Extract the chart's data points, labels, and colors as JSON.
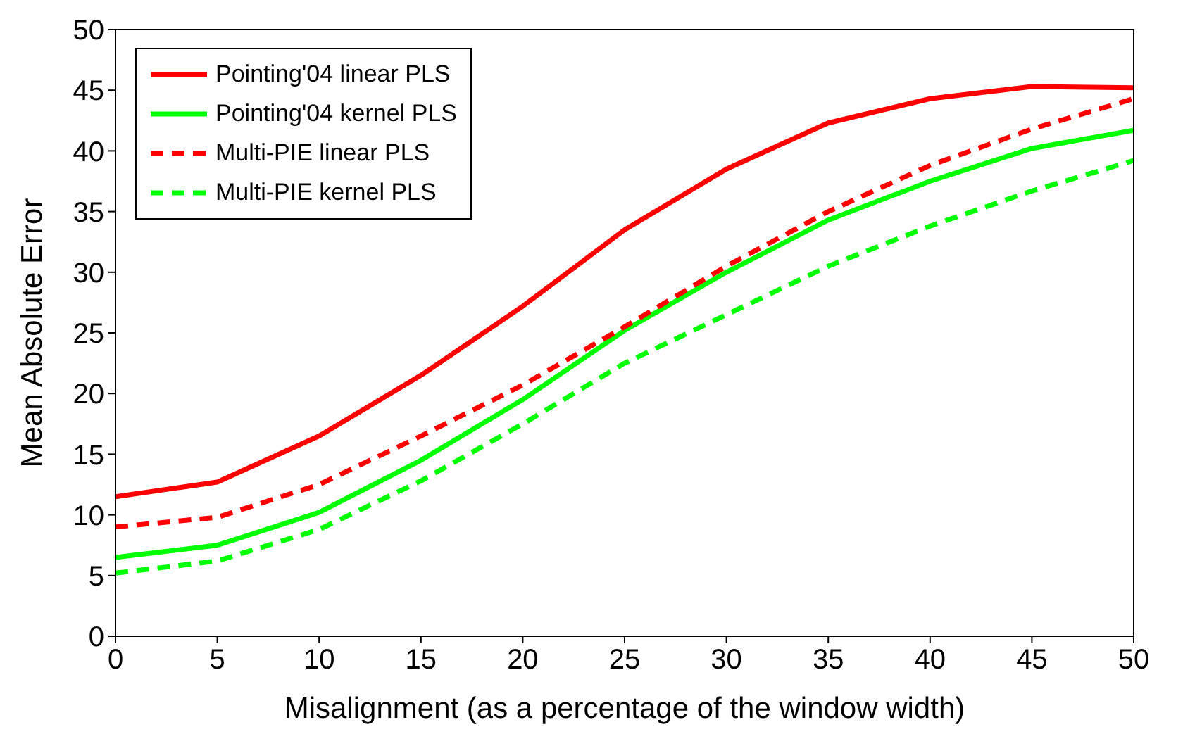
{
  "chart_data": {
    "type": "line",
    "xlabel": "Misalignment (as a percentage of the window width)",
    "ylabel": "Mean Absolute Error",
    "x": [
      0,
      5,
      10,
      15,
      20,
      25,
      30,
      35,
      40,
      45,
      50
    ],
    "series": [
      {
        "name": "Pointing'04 linear PLS",
        "color": "#ff0000",
        "line_style": "solid",
        "values": [
          11.5,
          12.7,
          16.5,
          21.5,
          27.2,
          33.5,
          38.5,
          42.3,
          44.3,
          45.3,
          45.2
        ]
      },
      {
        "name": "Pointing'04 kernel PLS",
        "color": "#00ff00",
        "line_style": "solid",
        "values": [
          6.5,
          7.5,
          10.2,
          14.5,
          19.5,
          25.2,
          30,
          34.3,
          37.5,
          40.2,
          41.7
        ]
      },
      {
        "name": "Multi-PIE linear PLS",
        "color": "#ff0000",
        "line_style": "dashed",
        "values": [
          9,
          9.8,
          12.5,
          16.5,
          20.7,
          25.5,
          30.5,
          35,
          38.8,
          41.8,
          44.3
        ]
      },
      {
        "name": "Multi-PIE kernel PLS",
        "color": "#00ff00",
        "line_style": "dashed",
        "values": [
          5.2,
          6.2,
          8.8,
          12.8,
          17.5,
          22.5,
          26.5,
          30.5,
          33.8,
          36.7,
          39.2
        ]
      }
    ],
    "xlim": [
      0,
      50
    ],
    "xticks": [
      0,
      5,
      10,
      15,
      20,
      25,
      30,
      35,
      40,
      45,
      50
    ],
    "ylim": [
      0,
      50
    ],
    "yticks": [
      0,
      5,
      10,
      15,
      20,
      25,
      30,
      35,
      40,
      45,
      50
    ],
    "grid": false,
    "legend": "top left",
    "marker": "none"
  }
}
